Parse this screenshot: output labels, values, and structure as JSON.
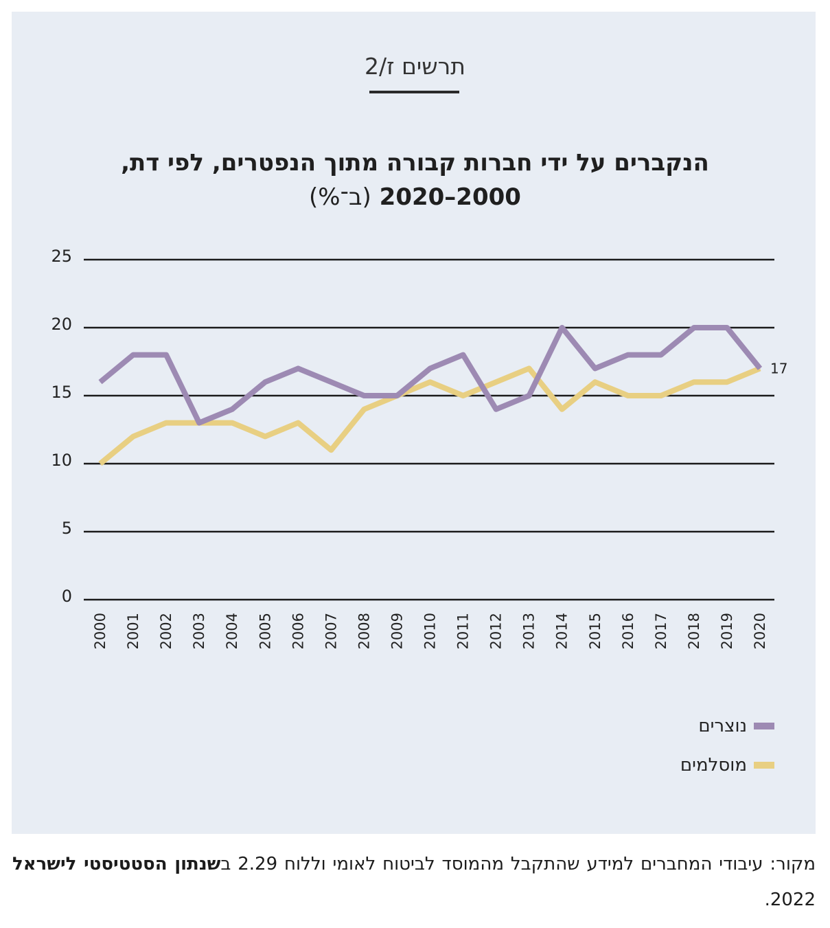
{
  "figure": {
    "label": "תרשים ז/2",
    "title_line1": "הנקברים על ידי חברות קבורה מתוך הנפטרים, לפי דת,",
    "title_years": "2000–2020",
    "title_unit": "(ב־%)"
  },
  "chart_data": {
    "type": "line",
    "title": "הנקברים על ידי חברות קבורה מתוך הנפטרים, לפי דת, 2000–2020 (ב־%)",
    "xlabel": "",
    "ylabel": "",
    "x": [
      "2000",
      "2001",
      "2002",
      "2003",
      "2004",
      "2005",
      "2006",
      "2007",
      "2008",
      "2009",
      "2010",
      "2011",
      "2012",
      "2013",
      "2014",
      "2015",
      "2016",
      "2017",
      "2018",
      "2019",
      "2020"
    ],
    "ylim": [
      0,
      25
    ],
    "yticks": [
      0,
      5,
      10,
      15,
      20,
      25
    ],
    "grid": "horizontal",
    "legend_position": "bottom-right",
    "series": [
      {
        "name": "נוצרים",
        "color": "#9d8ab3",
        "values": [
          16,
          18,
          18,
          13,
          14,
          16,
          17,
          16,
          15,
          15,
          17,
          18,
          14,
          15,
          20,
          17,
          18,
          18,
          20,
          20,
          17
        ]
      },
      {
        "name": "מוסלמים",
        "color": "#e8cf82",
        "values": [
          10,
          12,
          13,
          13,
          13,
          12,
          13,
          11,
          14,
          15,
          16,
          15,
          16,
          17,
          14,
          16,
          15,
          15,
          16,
          16,
          17
        ]
      }
    ],
    "annotations": [
      {
        "text": "17"
      }
    ]
  },
  "source": {
    "prefix": "מקור: עיבודי המחברים למידע שהתקבל מהמוסד לביטוח לאומי וללוח 2.29 ב",
    "bold": "שנתון הסטטיסטי לישראל",
    "suffix": " 2022."
  }
}
